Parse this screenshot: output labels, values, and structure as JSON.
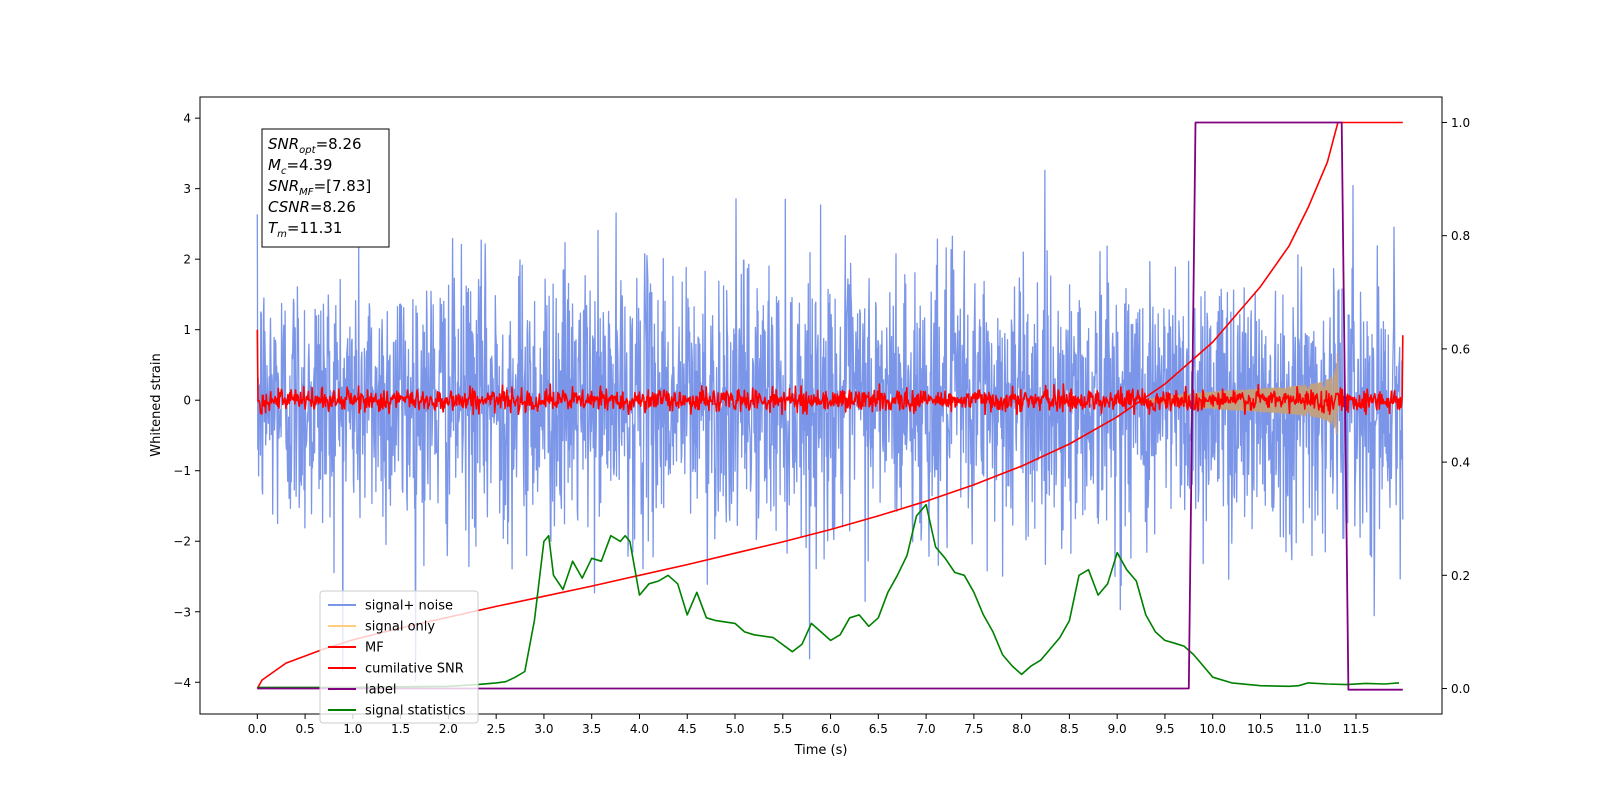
{
  "chart_data": {
    "type": "line",
    "xlabel": "Time (s)",
    "ylabel": "Whitened strain",
    "ylabel_right": "",
    "xlim": [
      -0.6,
      12.4
    ],
    "ylim": [
      -4.45,
      4.3
    ],
    "ylim_right": [
      -0.045,
      1.045
    ],
    "x_ticks": [
      0.0,
      0.5,
      1.0,
      1.5,
      2.0,
      2.5,
      3.0,
      3.5,
      4.0,
      4.5,
      5.0,
      5.5,
      6.0,
      6.5,
      7.0,
      7.5,
      8.0,
      8.5,
      9.0,
      9.5,
      10.0,
      10.5,
      11.0,
      11.5
    ],
    "x_tick_labels": [
      "0.0",
      "0.5",
      "1.0",
      "1.5",
      "2.0",
      "2.5",
      "3.0",
      "3.5",
      "4.0",
      "4.5",
      "5.0",
      "5.5",
      "6.0",
      "6.5",
      "7.0",
      "7.5",
      "8.0",
      "8.5",
      "9.0",
      "9.5",
      "10.0",
      "10.5",
      "11.0",
      "11.5"
    ],
    "y_ticks": [
      -4,
      -3,
      -2,
      -1,
      0,
      1,
      2,
      3,
      4
    ],
    "y_tick_labels": [
      "−4",
      "−3",
      "−2",
      "−1",
      "0",
      "1",
      "2",
      "3",
      "4"
    ],
    "y_right_ticks": [
      0.0,
      0.2,
      0.4,
      0.6,
      0.8,
      1.0
    ],
    "y_right_tick_labels": [
      "0.0",
      "0.2",
      "0.4",
      "0.6",
      "0.8",
      "1.0"
    ],
    "grid": false,
    "legend_position": "lower-left",
    "annotation_box": {
      "lines": [
        {
          "sym": "SNR",
          "sub": "opt",
          "text": "=8.26"
        },
        {
          "sym": "M",
          "sub": "c",
          "text": "=4.39"
        },
        {
          "sym": "SNR",
          "sub": "MF",
          "text": "=[7.83]"
        },
        {
          "sym": "CSNR",
          "sub": "",
          "text": "=8.26"
        },
        {
          "sym": "T",
          "sub": "m",
          "text": "=11.31"
        }
      ]
    },
    "series": [
      {
        "name": "signal+ noise",
        "axis": "left",
        "color": "#7b96e8",
        "generated": "noise",
        "x_range": [
          0.0,
          11.99
        ],
        "amplitude_std": 0.95,
        "peak_range": [
          -4.1,
          3.95
        ]
      },
      {
        "name": "signal only",
        "axis": "left",
        "color": "#ffcc80",
        "generated": "chirp",
        "x_range": [
          9.3,
          11.31
        ],
        "max_amplitude": 0.7
      },
      {
        "name": "MF",
        "axis": "left",
        "color": "#ff0000",
        "generated": "noise",
        "x_range": [
          0.0,
          11.99
        ],
        "amplitude_std": 0.08,
        "range": [
          -0.2,
          0.45
        ],
        "edge_values": {
          "start": 1.0,
          "end": 0.92
        }
      },
      {
        "name": "cumilative SNR",
        "axis": "right",
        "color": "#ff0000",
        "x": [
          0.0,
          0.05,
          0.3,
          0.7,
          1.0,
          1.5,
          2.0,
          2.5,
          3.0,
          3.5,
          4.0,
          4.5,
          5.0,
          5.5,
          6.0,
          6.5,
          7.0,
          7.5,
          8.0,
          8.5,
          9.0,
          9.5,
          10.0,
          10.5,
          10.8,
          11.0,
          11.2,
          11.31,
          11.99
        ],
        "y": [
          0.0,
          0.015,
          0.045,
          0.07,
          0.086,
          0.107,
          0.126,
          0.145,
          0.163,
          0.181,
          0.2,
          0.219,
          0.239,
          0.259,
          0.281,
          0.305,
          0.331,
          0.36,
          0.393,
          0.432,
          0.48,
          0.538,
          0.612,
          0.71,
          0.782,
          0.85,
          0.93,
          1.0,
          1.0
        ]
      },
      {
        "name": "label",
        "axis": "right",
        "color": "#800080",
        "x": [
          0.0,
          9.75,
          9.82,
          11.35,
          11.42,
          11.99
        ],
        "y": [
          0.0,
          0.0,
          1.0,
          1.0,
          -0.002,
          -0.002
        ]
      },
      {
        "name": "signal statistics",
        "axis": "right",
        "color": "#008000",
        "x": [
          0.0,
          0.5,
          1.0,
          1.5,
          2.0,
          2.3,
          2.5,
          2.6,
          2.7,
          2.8,
          2.9,
          3.0,
          3.05,
          3.1,
          3.2,
          3.3,
          3.4,
          3.5,
          3.6,
          3.7,
          3.8,
          3.85,
          3.9,
          4.0,
          4.1,
          4.2,
          4.3,
          4.4,
          4.5,
          4.6,
          4.7,
          4.8,
          5.0,
          5.1,
          5.2,
          5.4,
          5.6,
          5.7,
          5.8,
          5.9,
          6.0,
          6.1,
          6.2,
          6.3,
          6.4,
          6.5,
          6.6,
          6.7,
          6.8,
          6.9,
          7.0,
          7.1,
          7.2,
          7.3,
          7.4,
          7.5,
          7.6,
          7.7,
          7.8,
          7.9,
          8.0,
          8.1,
          8.2,
          8.3,
          8.4,
          8.5,
          8.6,
          8.7,
          8.8,
          8.9,
          9.0,
          9.1,
          9.2,
          9.3,
          9.4,
          9.5,
          9.6,
          9.7,
          9.8,
          9.9,
          10.0,
          10.2,
          10.5,
          10.8,
          10.9,
          11.0,
          11.2,
          11.4,
          11.6,
          11.8,
          11.95
        ],
        "y": [
          0.002,
          0.002,
          0.002,
          0.003,
          0.004,
          0.007,
          0.01,
          0.012,
          0.02,
          0.03,
          0.12,
          0.26,
          0.27,
          0.2,
          0.175,
          0.225,
          0.195,
          0.23,
          0.225,
          0.27,
          0.26,
          0.27,
          0.26,
          0.165,
          0.185,
          0.19,
          0.2,
          0.185,
          0.13,
          0.17,
          0.125,
          0.12,
          0.115,
          0.1,
          0.095,
          0.09,
          0.065,
          0.078,
          0.115,
          0.1,
          0.085,
          0.095,
          0.125,
          0.13,
          0.11,
          0.125,
          0.17,
          0.2,
          0.235,
          0.305,
          0.325,
          0.25,
          0.23,
          0.205,
          0.2,
          0.17,
          0.13,
          0.1,
          0.06,
          0.04,
          0.025,
          0.04,
          0.05,
          0.07,
          0.09,
          0.12,
          0.2,
          0.21,
          0.165,
          0.185,
          0.24,
          0.21,
          0.19,
          0.13,
          0.1,
          0.085,
          0.08,
          0.075,
          0.06,
          0.04,
          0.02,
          0.01,
          0.005,
          0.004,
          0.005,
          0.01,
          0.008,
          0.007,
          0.009,
          0.008,
          0.01
        ]
      }
    ]
  }
}
